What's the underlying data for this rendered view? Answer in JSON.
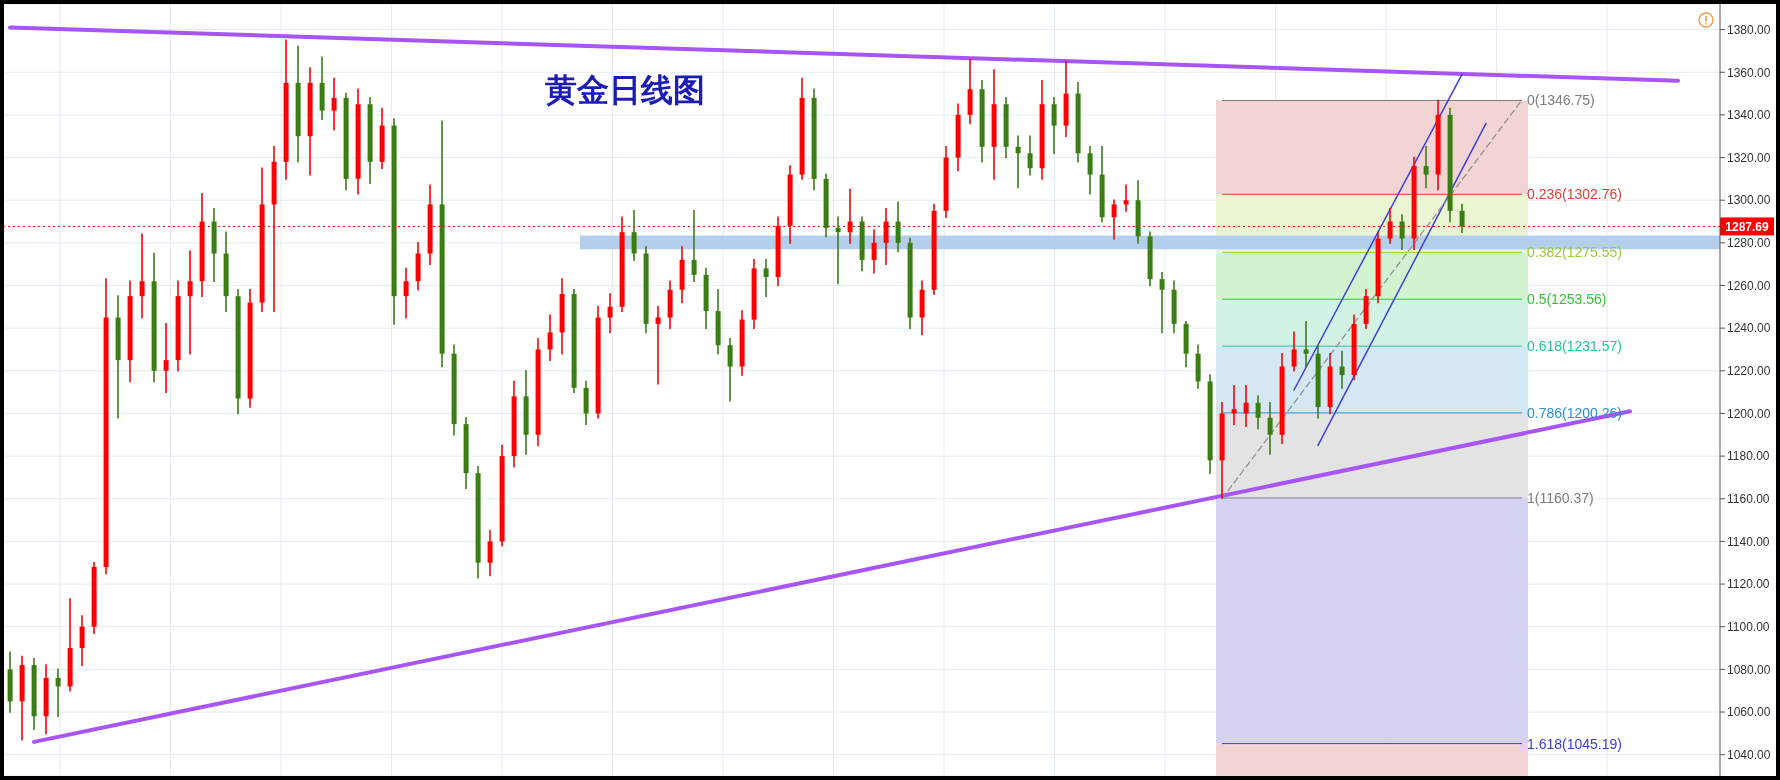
{
  "chart_data": {
    "type": "candlestick",
    "title": "黄金日线图",
    "categories": [
      null,
      null,
      null,
      null,
      null,
      null,
      null,
      null,
      null,
      null,
      null,
      null,
      null,
      null,
      null,
      null,
      null,
      null,
      null,
      null,
      null,
      null,
      null,
      null,
      null,
      null,
      null,
      null,
      null,
      null,
      null,
      null,
      null,
      null,
      null,
      null,
      null,
      null,
      null,
      null,
      null,
      null,
      null,
      null,
      null,
      null,
      null,
      null,
      null,
      null,
      null,
      null,
      null,
      null,
      null,
      null,
      null,
      null,
      null,
      null,
      null,
      null,
      null,
      null,
      null,
      null,
      null,
      null,
      null,
      null,
      null,
      null,
      null,
      null,
      null,
      null,
      null,
      null,
      null,
      null,
      null,
      null,
      null,
      null,
      null,
      null,
      null,
      null,
      null,
      null,
      null,
      null,
      null,
      null,
      null,
      null,
      null,
      null,
      null,
      null,
      null,
      null,
      null,
      null,
      null,
      null,
      null,
      null,
      null,
      null,
      null,
      null,
      null,
      null,
      null,
      null,
      null,
      null,
      null,
      null,
      null,
      null,
      null,
      null,
      null,
      null,
      null,
      null,
      null,
      null,
      null,
      null,
      null,
      null,
      null,
      null,
      null,
      null,
      null,
      null,
      null,
      null,
      null
    ],
    "ohlc": [
      [
        1080,
        1088,
        1060,
        1065
      ],
      [
        1065,
        1086,
        1047,
        1082
      ],
      [
        1082,
        1085,
        1052,
        1058
      ],
      [
        1058,
        1082,
        1050,
        1076
      ],
      [
        1076,
        1080,
        1058,
        1072
      ],
      [
        1072,
        1113,
        1070,
        1090
      ],
      [
        1090,
        1105,
        1082,
        1100
      ],
      [
        1100,
        1130,
        1097,
        1128
      ],
      [
        1128,
        1263,
        1125,
        1245
      ],
      [
        1245,
        1255,
        1198,
        1225
      ],
      [
        1225,
        1262,
        1215,
        1255
      ],
      [
        1255,
        1284,
        1245,
        1262
      ],
      [
        1262,
        1275,
        1215,
        1220
      ],
      [
        1220,
        1242,
        1210,
        1225
      ],
      [
        1225,
        1262,
        1220,
        1255
      ],
      [
        1255,
        1276,
        1228,
        1262
      ],
      [
        1262,
        1303,
        1255,
        1290
      ],
      [
        1290,
        1296,
        1262,
        1275
      ],
      [
        1275,
        1285,
        1248,
        1255
      ],
      [
        1255,
        1258,
        1200,
        1207
      ],
      [
        1207,
        1258,
        1203,
        1252
      ],
      [
        1252,
        1315,
        1248,
        1298
      ],
      [
        1298,
        1325,
        1248,
        1318
      ],
      [
        1318,
        1375,
        1310,
        1355
      ],
      [
        1355,
        1372,
        1318,
        1330
      ],
      [
        1330,
        1362,
        1312,
        1355
      ],
      [
        1355,
        1367,
        1338,
        1342
      ],
      [
        1342,
        1357,
        1333,
        1348
      ],
      [
        1348,
        1350,
        1305,
        1310
      ],
      [
        1310,
        1352,
        1303,
        1345
      ],
      [
        1345,
        1348,
        1308,
        1318
      ],
      [
        1318,
        1343,
        1315,
        1335
      ],
      [
        1335,
        1338,
        1242,
        1255
      ],
      [
        1255,
        1268,
        1245,
        1262
      ],
      [
        1262,
        1280,
        1258,
        1275
      ],
      [
        1275,
        1307,
        1270,
        1298
      ],
      [
        1298,
        1337,
        1222,
        1228
      ],
      [
        1228,
        1232,
        1190,
        1195
      ],
      [
        1195,
        1198,
        1165,
        1172
      ],
      [
        1172,
        1175,
        1123,
        1130
      ],
      [
        1130,
        1145,
        1124,
        1140
      ],
      [
        1140,
        1185,
        1138,
        1180
      ],
      [
        1180,
        1215,
        1175,
        1208
      ],
      [
        1208,
        1220,
        1181,
        1190
      ],
      [
        1190,
        1235,
        1185,
        1230
      ],
      [
        1230,
        1246,
        1225,
        1238
      ],
      [
        1238,
        1263,
        1228,
        1256
      ],
      [
        1256,
        1258,
        1210,
        1212
      ],
      [
        1212,
        1215,
        1195,
        1200
      ],
      [
        1200,
        1250,
        1198,
        1245
      ],
      [
        1245,
        1256,
        1238,
        1250
      ],
      [
        1250,
        1292,
        1248,
        1285
      ],
      [
        1285,
        1295,
        1272,
        1275
      ],
      [
        1275,
        1278,
        1238,
        1242
      ],
      [
        1242,
        1250,
        1214,
        1245
      ],
      [
        1245,
        1262,
        1240,
        1258
      ],
      [
        1258,
        1278,
        1252,
        1272
      ],
      [
        1272,
        1295,
        1262,
        1265
      ],
      [
        1265,
        1268,
        1240,
        1248
      ],
      [
        1248,
        1258,
        1228,
        1232
      ],
      [
        1232,
        1235,
        1206,
        1222
      ],
      [
        1222,
        1248,
        1218,
        1244
      ],
      [
        1244,
        1272,
        1240,
        1268
      ],
      [
        1268,
        1272,
        1255,
        1264
      ],
      [
        1264,
        1292,
        1260,
        1288
      ],
      [
        1288,
        1316,
        1280,
        1312
      ],
      [
        1312,
        1357,
        1310,
        1348
      ],
      [
        1348,
        1352,
        1305,
        1310
      ],
      [
        1310,
        1312,
        1283,
        1287
      ],
      [
        1287,
        1292,
        1261,
        1285
      ],
      [
        1285,
        1305,
        1280,
        1290
      ],
      [
        1290,
        1292,
        1267,
        1272
      ],
      [
        1272,
        1286,
        1266,
        1280
      ],
      [
        1280,
        1296,
        1270,
        1290
      ],
      [
        1290,
        1299,
        1276,
        1280
      ],
      [
        1280,
        1282,
        1240,
        1245
      ],
      [
        1245,
        1262,
        1237,
        1258
      ],
      [
        1258,
        1298,
        1256,
        1295
      ],
      [
        1295,
        1325,
        1292,
        1320
      ],
      [
        1320,
        1345,
        1314,
        1340
      ],
      [
        1340,
        1366,
        1336,
        1352
      ],
      [
        1352,
        1356,
        1318,
        1325
      ],
      [
        1325,
        1361,
        1310,
        1345
      ],
      [
        1345,
        1348,
        1320,
        1325
      ],
      [
        1325,
        1330,
        1306,
        1322
      ],
      [
        1322,
        1330,
        1312,
        1315
      ],
      [
        1315,
        1356,
        1310,
        1345
      ],
      [
        1345,
        1348,
        1322,
        1335
      ],
      [
        1335,
        1365,
        1330,
        1350
      ],
      [
        1350,
        1355,
        1318,
        1322
      ],
      [
        1322,
        1325,
        1303,
        1312
      ],
      [
        1312,
        1325,
        1290,
        1292
      ],
      [
        1292,
        1300,
        1282,
        1298
      ],
      [
        1298,
        1307,
        1295,
        1300
      ],
      [
        1300,
        1309,
        1280,
        1283
      ],
      [
        1283,
        1285,
        1260,
        1263
      ],
      [
        1263,
        1266,
        1238,
        1258
      ],
      [
        1258,
        1262,
        1238,
        1242
      ],
      [
        1242,
        1243,
        1222,
        1228
      ],
      [
        1228,
        1232,
        1212,
        1215
      ],
      [
        1215,
        1218,
        1172,
        1178
      ],
      [
        1178,
        1205,
        1160.37,
        1200
      ],
      [
        1200,
        1213,
        1195,
        1202
      ],
      [
        1200,
        1213,
        1194,
        1205
      ],
      [
        1205,
        1208,
        1193,
        1198
      ],
      [
        1198,
        1205,
        1181,
        1190
      ],
      [
        1190,
        1228,
        1186,
        1222
      ],
      [
        1222,
        1238,
        1220,
        1230
      ],
      [
        1230,
        1243,
        1222,
        1228
      ],
      [
        1228,
        1232,
        1198,
        1203
      ],
      [
        1203,
        1228,
        1200,
        1222
      ],
      [
        1222,
        1229,
        1212,
        1218
      ],
      [
        1218,
        1246,
        1216,
        1242
      ],
      [
        1242,
        1258,
        1240,
        1255
      ],
      [
        1255,
        1285,
        1252,
        1282
      ],
      [
        1282,
        1296,
        1280,
        1290
      ],
      [
        1290,
        1293,
        1277,
        1282
      ],
      [
        1282,
        1320,
        1277,
        1316
      ],
      [
        1316,
        1325,
        1306,
        1312
      ],
      [
        1312,
        1346.75,
        1305,
        1340
      ],
      [
        1340,
        1343,
        1290,
        1295
      ],
      [
        1295,
        1298,
        1285,
        1287.69
      ],
      null,
      null,
      null,
      null,
      null,
      null,
      null,
      null,
      null,
      null,
      null,
      null,
      null,
      null,
      null,
      null,
      null,
      null,
      null,
      null,
      null
    ],
    "colors": [
      "#3a7d13",
      "#ff0000",
      "#3a7d13",
      "#ff0000",
      "#3a7d13",
      "#ff0000",
      "#ff0000",
      "#ff0000",
      "#ff0000",
      "#3a7d13",
      "#ff0000",
      "#ff0000",
      "#3a7d13",
      "#ff0000",
      "#ff0000",
      "#ff0000",
      "#ff0000",
      "#3a7d13",
      "#3a7d13",
      "#3a7d13",
      "#ff0000",
      "#ff0000",
      "#ff0000",
      "#ff0000",
      "#3a7d13",
      "#ff0000",
      "#3a7d13",
      "#ff0000",
      "#3a7d13",
      "#ff0000",
      "#3a7d13",
      "#ff0000",
      "#3a7d13",
      "#ff0000",
      "#ff0000",
      "#ff0000",
      "#3a7d13",
      "#3a7d13",
      "#3a7d13",
      "#3a7d13",
      "#ff0000",
      "#ff0000",
      "#ff0000",
      "#3a7d13",
      "#ff0000",
      "#ff0000",
      "#ff0000",
      "#3a7d13",
      "#3a7d13",
      "#ff0000",
      "#ff0000",
      "#ff0000",
      "#3a7d13",
      "#3a7d13",
      "#ff0000",
      "#ff0000",
      "#ff0000",
      "#3a7d13",
      "#3a7d13",
      "#3a7d13",
      "#3a7d13",
      "#ff0000",
      "#ff0000",
      "#3a7d13",
      "#ff0000",
      "#ff0000",
      "#ff0000",
      "#3a7d13",
      "#3a7d13",
      "#3a7d13",
      "#ff0000",
      "#3a7d13",
      "#ff0000",
      "#ff0000",
      "#3a7d13",
      "#3a7d13",
      "#ff0000",
      "#ff0000",
      "#ff0000",
      "#ff0000",
      "#ff0000",
      "#3a7d13",
      "#ff0000",
      "#3a7d13",
      "#3a7d13",
      "#3a7d13",
      "#ff0000",
      "#3a7d13",
      "#ff0000",
      "#3a7d13",
      "#3a7d13",
      "#3a7d13",
      "#ff0000",
      "#ff0000",
      "#3a7d13",
      "#3a7d13",
      "#3a7d13",
      "#3a7d13",
      "#3a7d13",
      "#3a7d13",
      "#3a7d13",
      "#ff0000",
      "#ff0000",
      "#ff0000",
      "#3a7d13",
      "#3a7d13",
      "#ff0000",
      "#ff0000",
      "#3a7d13",
      "#3a7d13",
      "#ff0000",
      "#3a7d13",
      "#ff0000",
      "#ff0000",
      "#ff0000",
      "#ff0000",
      "#3a7d13",
      "#ff0000",
      "#3a7d13",
      "#ff0000",
      "#3a7d13",
      "#3a7d13",
      null,
      null,
      null,
      null,
      null,
      null,
      null,
      null,
      null,
      null,
      null,
      null,
      null,
      null,
      null,
      null,
      null,
      null,
      null,
      null,
      null
    ],
    "series": [
      {
        "type": "line",
        "color": "#a855f7",
        "values": [
          1381,
          null,
          null,
          null,
          null,
          null,
          null,
          null,
          null,
          null,
          null,
          null,
          null,
          null,
          null,
          null,
          null,
          null,
          null,
          null,
          null,
          null,
          null,
          null,
          null,
          null,
          null,
          null,
          null,
          null,
          null,
          null,
          null,
          null,
          null,
          null,
          null,
          null,
          null,
          null,
          null,
          null,
          null,
          null,
          null,
          null,
          null,
          null,
          null,
          null,
          null,
          null,
          null,
          null,
          null,
          null,
          null,
          null,
          null,
          null,
          null,
          null,
          null,
          null,
          null,
          null,
          null,
          null,
          null,
          null,
          null,
          null,
          null,
          null,
          null,
          null,
          null,
          null,
          null,
          null,
          null,
          null,
          null,
          null,
          null,
          null,
          null,
          null,
          null,
          null,
          null,
          null,
          null,
          null,
          null,
          null,
          null,
          null,
          null,
          null,
          null,
          null,
          null,
          null,
          null,
          null,
          null,
          null,
          null,
          null,
          null,
          null,
          null,
          null,
          null,
          null,
          null,
          null,
          null,
          null,
          null,
          null,
          null,
          null,
          null,
          null,
          null,
          null,
          null,
          null,
          null,
          null,
          null,
          null,
          null,
          null,
          null,
          null,
          null,
          1356,
          null,
          null,
          null
        ]
      },
      {
        "type": "line",
        "color": "#a855f7",
        "values": [
          null,
          null,
          1046,
          null,
          null,
          null,
          null,
          null,
          null,
          null,
          null,
          null,
          null,
          null,
          null,
          null,
          null,
          null,
          null,
          null,
          null,
          null,
          null,
          null,
          null,
          null,
          null,
          null,
          null,
          null,
          null,
          null,
          null,
          null,
          null,
          null,
          null,
          null,
          null,
          null,
          null,
          null,
          null,
          null,
          null,
          null,
          null,
          null,
          null,
          null,
          null,
          null,
          null,
          null,
          null,
          null,
          null,
          null,
          null,
          null,
          null,
          null,
          null,
          null,
          null,
          null,
          null,
          null,
          null,
          null,
          null,
          null,
          null,
          null,
          null,
          null,
          null,
          null,
          null,
          null,
          null,
          null,
          null,
          null,
          null,
          null,
          null,
          null,
          null,
          null,
          null,
          null,
          null,
          null,
          null,
          null,
          null,
          null,
          null,
          null,
          null,
          null,
          null,
          null,
          null,
          null,
          null,
          null,
          null,
          null,
          null,
          null,
          null,
          null,
          null,
          null,
          null,
          null,
          null,
          null,
          null,
          null,
          null,
          null,
          null,
          null,
          null,
          null,
          null,
          null,
          null,
          null,
          null,
          null,
          null,
          1201,
          null,
          null,
          null,
          null,
          null,
          null,
          null
        ]
      },
      {
        "type": "line",
        "color": "#3f3fdc",
        "values": [
          null,
          null,
          null,
          null,
          null,
          null,
          null,
          null,
          null,
          null,
          null,
          null,
          null,
          null,
          null,
          null,
          null,
          null,
          null,
          null,
          null,
          null,
          null,
          null,
          null,
          null,
          null,
          null,
          null,
          null,
          null,
          null,
          null,
          null,
          null,
          null,
          null,
          null,
          null,
          null,
          null,
          null,
          null,
          null,
          null,
          null,
          null,
          null,
          null,
          null,
          null,
          null,
          null,
          null,
          null,
          null,
          null,
          null,
          null,
          null,
          null,
          null,
          null,
          null,
          null,
          null,
          null,
          null,
          null,
          null,
          null,
          null,
          null,
          null,
          null,
          null,
          null,
          null,
          null,
          null,
          null,
          null,
          null,
          null,
          null,
          null,
          null,
          null,
          null,
          null,
          null,
          null,
          null,
          null,
          null,
          null,
          null,
          null,
          null,
          null,
          null,
          null,
          null,
          null,
          null,
          null,
          null,
          1211,
          null,
          null,
          null,
          null,
          null,
          null,
          null,
          null,
          null,
          null,
          null,
          null,
          null,
          1359,
          null,
          null,
          null,
          null,
          null,
          null,
          null,
          null,
          null,
          null,
          null,
          null,
          null,
          null,
          null,
          null,
          null,
          null,
          null,
          null,
          null
        ]
      },
      {
        "type": "line",
        "color": "#3f3fdc",
        "values": [
          null,
          null,
          null,
          null,
          null,
          null,
          null,
          null,
          null,
          null,
          null,
          null,
          null,
          null,
          null,
          null,
          null,
          null,
          null,
          null,
          null,
          null,
          null,
          null,
          null,
          null,
          null,
          null,
          null,
          null,
          null,
          null,
          null,
          null,
          null,
          null,
          null,
          null,
          null,
          null,
          null,
          null,
          null,
          null,
          null,
          null,
          null,
          null,
          null,
          null,
          null,
          null,
          null,
          null,
          null,
          null,
          null,
          null,
          null,
          null,
          null,
          null,
          null,
          null,
          null,
          null,
          null,
          null,
          null,
          null,
          null,
          null,
          null,
          null,
          null,
          null,
          null,
          null,
          null,
          null,
          null,
          null,
          null,
          null,
          null,
          null,
          null,
          null,
          null,
          null,
          null,
          null,
          null,
          null,
          null,
          null,
          null,
          null,
          null,
          null,
          null,
          null,
          null,
          null,
          null,
          null,
          null,
          null,
          null,
          1185,
          null,
          null,
          null,
          null,
          null,
          null,
          null,
          null,
          null,
          null,
          null,
          null,
          null,
          1336,
          null,
          null,
          null,
          null,
          null,
          null,
          null,
          null,
          null,
          null,
          null,
          null,
          null,
          null,
          null,
          null,
          null,
          null,
          null
        ]
      },
      {
        "type": "line",
        "color": "#8c8c8c",
        "line_style": "dashed",
        "values": [
          null,
          null,
          null,
          null,
          null,
          null,
          null,
          null,
          null,
          null,
          null,
          null,
          null,
          null,
          null,
          null,
          null,
          null,
          null,
          null,
          null,
          null,
          null,
          null,
          null,
          null,
          null,
          null,
          null,
          null,
          null,
          null,
          null,
          null,
          null,
          null,
          null,
          null,
          null,
          null,
          null,
          null,
          null,
          null,
          null,
          null,
          null,
          null,
          null,
          null,
          null,
          null,
          null,
          null,
          null,
          null,
          null,
          null,
          null,
          null,
          null,
          null,
          null,
          null,
          null,
          null,
          null,
          null,
          null,
          null,
          null,
          null,
          null,
          null,
          null,
          null,
          null,
          null,
          null,
          null,
          null,
          null,
          null,
          null,
          null,
          null,
          null,
          null,
          null,
          null,
          null,
          null,
          null,
          null,
          null,
          null,
          null,
          null,
          null,
          null,
          null,
          1160,
          null,
          null,
          null,
          null,
          null,
          null,
          null,
          null,
          null,
          null,
          null,
          null,
          null,
          null,
          null,
          null,
          null,
          null,
          null,
          null,
          null,
          null,
          null,
          null,
          1347,
          null,
          null,
          null,
          null,
          null,
          null,
          null,
          null,
          null,
          null,
          null,
          null,
          null,
          null,
          null,
          null
        ]
      }
    ],
    "ylim": [
      1030,
      1392
    ],
    "yticks": [
      {
        "value": 1040,
        "label": "1040.00"
      },
      {
        "value": 1060,
        "label": "1060.00"
      },
      {
        "value": 1080,
        "label": "1080.00"
      },
      {
        "value": 1100,
        "label": "1100.00"
      },
      {
        "value": 1120,
        "label": "1120.00"
      },
      {
        "value": 1140,
        "label": "1140.00"
      },
      {
        "value": 1160,
        "label": "1160.00"
      },
      {
        "value": 1180,
        "label": "1180.00"
      },
      {
        "value": 1200,
        "label": "1200.00"
      },
      {
        "value": 1220,
        "label": "1220.00"
      },
      {
        "value": 1240,
        "label": "1240.00"
      },
      {
        "value": 1260,
        "label": "1260.00"
      },
      {
        "value": 1280,
        "label": "1280.00"
      },
      {
        "value": 1300,
        "label": "1300.00"
      },
      {
        "value": 1320,
        "label": "1320.00"
      },
      {
        "value": 1340,
        "label": "1340.00"
      },
      {
        "value": 1360,
        "label": "1360.00"
      },
      {
        "value": 1380,
        "label": "1380.00"
      }
    ],
    "tick_labels": "y",
    "grid": true,
    "ref_lines": [
      {
        "axis": "y",
        "value": 1346.75,
        "label": "0(1346.75)",
        "color": "#7d7d7d"
      },
      {
        "axis": "y",
        "value": 1302.76,
        "label": "0.236(1302.76)",
        "color": "#d9413a"
      },
      {
        "axis": "y",
        "value": 1275.55,
        "label": "0.382(1275.55)",
        "color": "#9ccc35"
      },
      {
        "axis": "y",
        "value": 1253.56,
        "label": "0.5(1253.56)",
        "color": "#35c235"
      },
      {
        "axis": "y",
        "value": 1231.57,
        "label": "0.618(1231.57)",
        "color": "#25c39a"
      },
      {
        "axis": "y",
        "value": 1200.26,
        "label": "0.786(1200.26)",
        "color": "#2f8fcf"
      },
      {
        "axis": "y",
        "value": 1160.37,
        "label": "1(1160.37)",
        "color": "#7d7d7d"
      },
      {
        "axis": "y",
        "value": 1045.19,
        "label": "1.618(1045.19)",
        "color": "#3c3cd6"
      },
      {
        "axis": "y",
        "value": 1287.69,
        "label": "1287.69",
        "color": "#ff0000",
        "line_style": "dotted"
      }
    ],
    "bands": [
      {
        "axis": "y",
        "from": 1302.76,
        "to": 1346.75,
        "color": "#f2d4d4"
      },
      {
        "axis": "y",
        "from": 1275.55,
        "to": 1302.76,
        "color": "#eaf5d2"
      },
      {
        "axis": "y",
        "from": 1253.56,
        "to": 1275.55,
        "color": "#d3f2cf"
      },
      {
        "axis": "y",
        "from": 1231.57,
        "to": 1253.56,
        "color": "#d2f2e6"
      },
      {
        "axis": "y",
        "from": 1200.26,
        "to": 1231.57,
        "color": "#d3e8f3"
      },
      {
        "axis": "y",
        "from": 1160.37,
        "to": 1200.26,
        "color": "#e3e3e3"
      },
      {
        "axis": "y",
        "from": 1045.19,
        "to": 1160.37,
        "color": "#d4d4f2"
      },
      {
        "axis": "y",
        "from": 1030,
        "to": 1045.19,
        "color": "#f2d4d4"
      },
      {
        "axis": "y",
        "from": 1277,
        "to": 1283.4,
        "color": "#b3cfeb"
      }
    ]
  }
}
